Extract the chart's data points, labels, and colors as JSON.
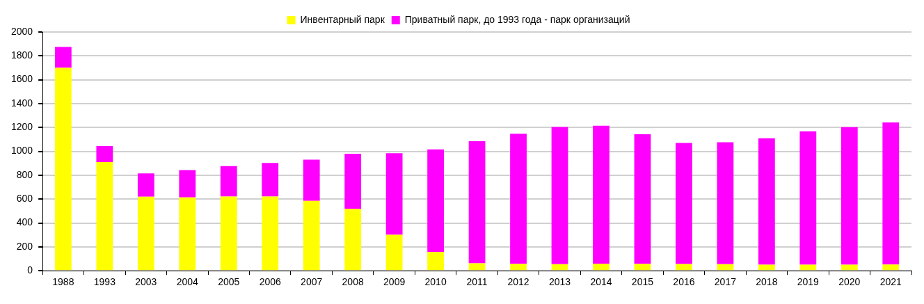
{
  "chart_data": {
    "type": "bar",
    "stacked": true,
    "categories": [
      "1988",
      "1993",
      "2003",
      "2004",
      "2005",
      "2006",
      "2007",
      "2008",
      "2009",
      "2010",
      "2011",
      "2012",
      "2013",
      "2014",
      "2015",
      "2016",
      "2017",
      "2018",
      "2019",
      "2020",
      "2021"
    ],
    "series": [
      {
        "name": "Инвентарный парк",
        "color": "#ffff00",
        "values": [
          1700,
          910,
          620,
          615,
          622,
          622,
          585,
          518,
          302,
          157,
          62,
          58,
          55,
          60,
          58,
          57,
          55,
          50,
          50,
          50,
          52
        ]
      },
      {
        "name": "Приватный парк, до 1993 года - парк организаций",
        "color": "#ff00ff",
        "values": [
          175,
          135,
          195,
          228,
          255,
          281,
          345,
          462,
          683,
          860,
          1023,
          1090,
          1150,
          1155,
          1085,
          1013,
          1022,
          1060,
          1118,
          1153,
          1191
        ]
      }
    ],
    "ylim": [
      0,
      2000
    ],
    "yticks": [
      0,
      200,
      400,
      600,
      800,
      1000,
      1200,
      1400,
      1600,
      1800,
      2000
    ],
    "grid": "y",
    "legend": "top"
  }
}
